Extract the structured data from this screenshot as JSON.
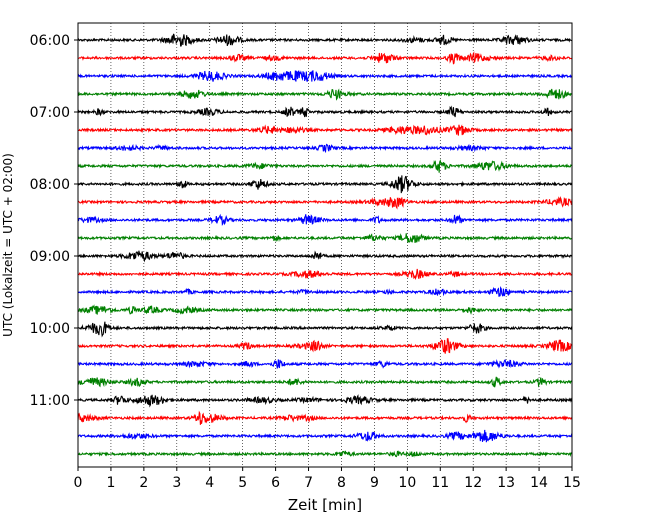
{
  "chart_data": {
    "type": "line",
    "title": "",
    "xlabel": "Zeit  [min]",
    "ylabel": "UTC (Lokalzeit = UTC + 02:00)",
    "xlim": [
      0,
      15
    ],
    "x_ticks": [
      "0",
      "1",
      "2",
      "3",
      "4",
      "5",
      "6",
      "7",
      "8",
      "9",
      "10",
      "11",
      "12",
      "13",
      "14",
      "15"
    ],
    "y_tick_labels": [
      "06:00",
      "07:00",
      "08:00",
      "09:00",
      "10:00",
      "11:00"
    ],
    "grid": "vertical dotted",
    "traces_per_hour": 4,
    "trace_minutes": 15,
    "color_cycle": [
      "#000000",
      "#ff0000",
      "#0000ff",
      "#008000"
    ],
    "traces": [
      {
        "start": "06:00",
        "color": "#000000"
      },
      {
        "start": "06:15",
        "color": "#ff0000"
      },
      {
        "start": "06:30",
        "color": "#0000ff"
      },
      {
        "start": "06:45",
        "color": "#008000"
      },
      {
        "start": "07:00",
        "color": "#000000"
      },
      {
        "start": "07:15",
        "color": "#ff0000"
      },
      {
        "start": "07:30",
        "color": "#0000ff"
      },
      {
        "start": "07:45",
        "color": "#008000"
      },
      {
        "start": "08:00",
        "color": "#000000"
      },
      {
        "start": "08:15",
        "color": "#ff0000"
      },
      {
        "start": "08:30",
        "color": "#0000ff"
      },
      {
        "start": "08:45",
        "color": "#008000"
      },
      {
        "start": "09:00",
        "color": "#000000"
      },
      {
        "start": "09:15",
        "color": "#ff0000"
      },
      {
        "start": "09:30",
        "color": "#0000ff"
      },
      {
        "start": "09:45",
        "color": "#008000"
      },
      {
        "start": "10:00",
        "color": "#000000"
      },
      {
        "start": "10:15",
        "color": "#ff0000"
      },
      {
        "start": "10:30",
        "color": "#0000ff"
      },
      {
        "start": "10:45",
        "color": "#008000"
      },
      {
        "start": "11:00",
        "color": "#000000"
      },
      {
        "start": "11:15",
        "color": "#ff0000"
      },
      {
        "start": "11:30",
        "color": "#0000ff"
      },
      {
        "start": "11:45",
        "color": "#008000"
      }
    ]
  }
}
